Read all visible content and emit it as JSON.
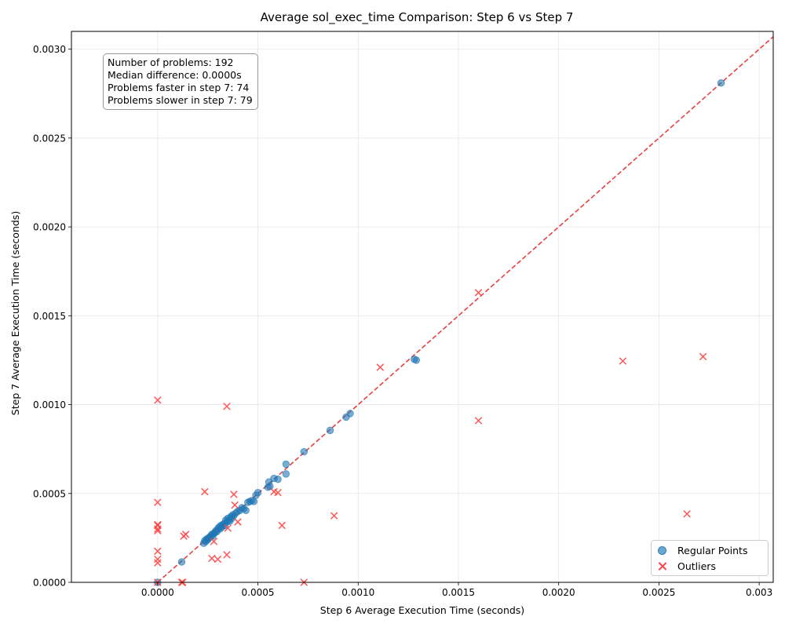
{
  "chart_data": {
    "type": "scatter",
    "title": "Average sol_exec_time Comparison: Step 6 vs Step 7",
    "xlabel": "Step 6 Average Execution Time (seconds)",
    "ylabel": "Step 7 Average Execution Time (seconds)",
    "xlim": [
      -0.00043,
      0.00307
    ],
    "ylim": [
      0,
      0.0031
    ],
    "x_ticks": [
      "0.0000",
      "0.0005",
      "0.0010",
      "0.0015",
      "0.0020",
      "0.0025",
      "0.003"
    ],
    "x_tick_values": [
      0,
      0.0005,
      0.001,
      0.0015,
      0.002,
      0.0025,
      0.003
    ],
    "y_ticks": [
      "0.0000",
      "0.0005",
      "0.0010",
      "0.0015",
      "0.0020",
      "0.0025",
      "0.0030"
    ],
    "y_tick_values": [
      0,
      0.0005,
      0.001,
      0.0015,
      0.002,
      0.0025,
      0.003
    ],
    "grid": true,
    "reference_line": {
      "description": "y = x",
      "color": "#e84040",
      "style": "dashed"
    },
    "stats_lines": [
      "Number of problems: 192",
      "Median difference: 0.0000s",
      "Problems faster in step 7: 74",
      "Problems slower in step 7: 79"
    ],
    "legend_position": "lower-right",
    "series": [
      {
        "name": "Regular Points",
        "marker": "circle",
        "color": "#1f77b4",
        "points": [
          [
            0.0,
            0.0
          ],
          [
            0.00012,
            0.000115
          ],
          [
            0.00023,
            0.00022
          ],
          [
            0.000235,
            0.000235
          ],
          [
            0.00024,
            0.00023
          ],
          [
            0.000245,
            0.000245
          ],
          [
            0.00025,
            0.00024
          ],
          [
            0.000255,
            0.00025
          ],
          [
            0.00026,
            0.000255
          ],
          [
            0.000265,
            0.00026
          ],
          [
            0.00027,
            0.00027
          ],
          [
            0.000275,
            0.00026
          ],
          [
            0.00028,
            0.000275
          ],
          [
            0.000285,
            0.00028
          ],
          [
            0.00029,
            0.00029
          ],
          [
            0.000295,
            0.000285
          ],
          [
            0.0003,
            0.0003
          ],
          [
            0.000305,
            0.00031
          ],
          [
            0.00031,
            0.0003
          ],
          [
            0.000315,
            0.00032
          ],
          [
            0.00032,
            0.00031
          ],
          [
            0.000325,
            0.000325
          ],
          [
            0.00033,
            0.00033
          ],
          [
            0.000335,
            0.00032
          ],
          [
            0.00034,
            0.00035
          ],
          [
            0.000345,
            0.00034
          ],
          [
            0.00035,
            0.00036
          ],
          [
            0.000355,
            0.00035
          ],
          [
            0.00036,
            0.000345
          ],
          [
            0.000365,
            0.00037
          ],
          [
            0.00037,
            0.00036
          ],
          [
            0.000375,
            0.00038
          ],
          [
            0.00038,
            0.000375
          ],
          [
            0.00039,
            0.00039
          ],
          [
            0.0004,
            0.0004
          ],
          [
            0.00041,
            0.000405
          ],
          [
            0.00042,
            0.00042
          ],
          [
            0.00043,
            0.000415
          ],
          [
            0.00044,
            0.000405
          ],
          [
            0.00045,
            0.00045
          ],
          [
            0.00046,
            0.000455
          ],
          [
            0.00047,
            0.00046
          ],
          [
            0.00048,
            0.000455
          ],
          [
            0.00049,
            0.00049
          ],
          [
            0.0005,
            0.000505
          ],
          [
            0.00055,
            0.000535
          ],
          [
            0.000555,
            0.000565
          ],
          [
            0.00056,
            0.00054
          ],
          [
            0.00058,
            0.000585
          ],
          [
            0.0006,
            0.00058
          ],
          [
            0.00064,
            0.000665
          ],
          [
            0.00064,
            0.00061
          ],
          [
            0.00073,
            0.000735
          ],
          [
            0.00086,
            0.000855
          ],
          [
            0.00094,
            0.00093
          ],
          [
            0.00096,
            0.00095
          ],
          [
            0.00128,
            0.001255
          ],
          [
            0.00129,
            0.00125
          ],
          [
            0.00281,
            0.00281
          ]
        ]
      },
      {
        "name": "Outliers",
        "marker": "x",
        "color": "#ff4444",
        "points": [
          [
            0.0,
            0.001025
          ],
          [
            0.0,
            0.00045
          ],
          [
            0.0,
            0.000325
          ],
          [
            0.0,
            0.00032
          ],
          [
            0.0,
            0.0003
          ],
          [
            0.0,
            0.00029
          ],
          [
            0.0,
            0.000175
          ],
          [
            0.0,
            0.00013
          ],
          [
            0.0,
            0.00011
          ],
          [
            0.0,
            0.0
          ],
          [
            0.00012,
            0.0
          ],
          [
            0.000125,
            0.0
          ],
          [
            0.00013,
            0.00026
          ],
          [
            0.00014,
            0.00027
          ],
          [
            0.000235,
            0.00051
          ],
          [
            0.00027,
            0.000135
          ],
          [
            0.00028,
            0.00023
          ],
          [
            0.0003,
            0.00013
          ],
          [
            0.000345,
            0.00099
          ],
          [
            0.000345,
            0.000155
          ],
          [
            0.00035,
            0.000305
          ],
          [
            0.00038,
            0.000495
          ],
          [
            0.000385,
            0.000435
          ],
          [
            0.0004,
            0.00034
          ],
          [
            0.00058,
            0.00051
          ],
          [
            0.0006,
            0.000505
          ],
          [
            0.00062,
            0.00032
          ],
          [
            0.00073,
            0.0
          ],
          [
            0.00088,
            0.000375
          ],
          [
            0.00111,
            0.00121
          ],
          [
            0.0016,
            0.00091
          ],
          [
            0.0016,
            0.00163
          ],
          [
            0.00232,
            0.001245
          ],
          [
            0.00264,
            0.000385
          ],
          [
            0.00272,
            0.00127
          ]
        ]
      }
    ]
  }
}
